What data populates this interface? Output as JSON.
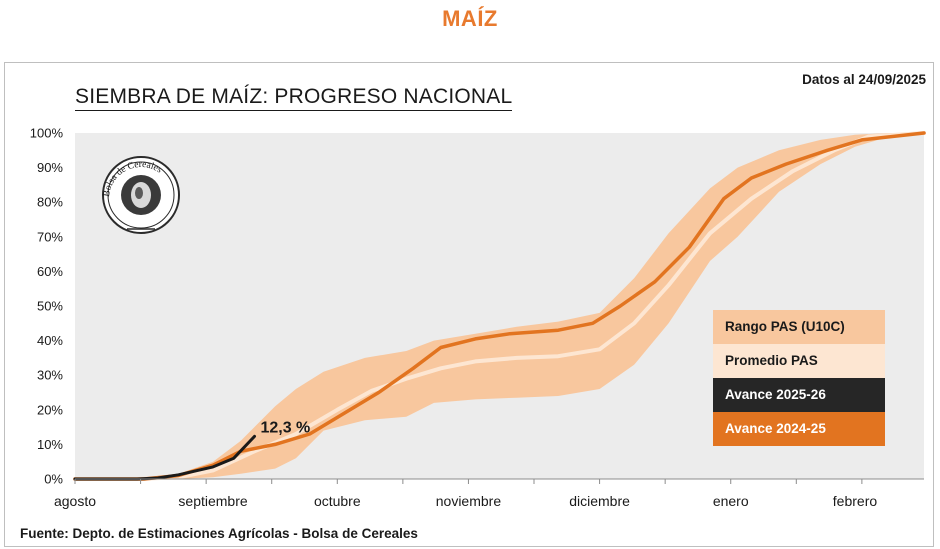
{
  "page_title": "MAÍZ",
  "date_note": "Datos al 24/09/2025",
  "source": "Fuente: Depto. de Estimaciones Agrícolas - Bolsa de Cereales",
  "logo_text": "Bolsa de Cereales",
  "colors": {
    "range": "#f8c79e",
    "average": "#fde6d2",
    "current": "#1a1a1a",
    "previous": "#e27420",
    "plot_bg": "#ececec",
    "title_accent": "#e87a2e"
  },
  "chart_data": {
    "type": "line",
    "title": "SIEMBRA DE MAÍZ: PROGRESO NACIONAL",
    "xlabel": "",
    "ylabel": "",
    "ylim": [
      0,
      100
    ],
    "xlim": [
      0,
      12.3
    ],
    "x_unit": "months since August 1",
    "x_ticks": [
      {
        "label": "agosto",
        "x": 0
      },
      {
        "label": "septiembre",
        "x": 2.0
      },
      {
        "label": "octubre",
        "x": 3.8
      },
      {
        "label": "noviembre",
        "x": 5.7
      },
      {
        "label": "diciembre",
        "x": 7.6
      },
      {
        "label": "enero",
        "x": 9.5
      },
      {
        "label": "febrero",
        "x": 11.3
      }
    ],
    "y_ticks": [
      0,
      10,
      20,
      30,
      40,
      50,
      60,
      70,
      80,
      90,
      100
    ],
    "y_tick_labels": [
      "0%",
      "10%",
      "20%",
      "30%",
      "40%",
      "50%",
      "60%",
      "70%",
      "80%",
      "90%",
      "100%"
    ],
    "annotation": {
      "text": "12,3 %",
      "x": 2.6,
      "y": 12.3
    },
    "series": [
      {
        "name": "Rango PAS (U10C)",
        "kind": "band",
        "x": [
          0,
          0.9,
          1.2,
          1.5,
          2.0,
          2.4,
          2.9,
          3.2,
          3.6,
          4.2,
          4.8,
          5.2,
          5.8,
          6.4,
          7.0,
          7.6,
          8.1,
          8.6,
          9.2,
          9.6,
          10.2,
          10.8,
          11.3,
          11.8,
          12.3
        ],
        "lower": [
          0,
          0,
          0,
          0,
          0.5,
          1.5,
          3,
          6,
          14,
          17,
          18,
          22,
          23,
          23.5,
          24,
          26,
          33,
          45,
          63,
          70,
          83,
          91,
          96,
          99,
          100
        ],
        "upper": [
          0,
          0,
          0.3,
          1.5,
          5,
          11,
          21,
          26,
          31,
          35,
          37,
          40,
          42,
          44,
          45.5,
          48,
          58,
          71,
          84,
          90,
          95,
          98,
          99.5,
          100,
          100
        ]
      },
      {
        "name": "Promedio PAS",
        "kind": "line",
        "x": [
          0,
          0.9,
          1.5,
          2.0,
          2.6,
          3.2,
          3.8,
          4.3,
          4.8,
          5.3,
          5.8,
          6.4,
          7.0,
          7.6,
          8.1,
          8.6,
          9.2,
          9.8,
          10.4,
          11.0,
          11.5,
          12.3
        ],
        "values": [
          0,
          0,
          0.5,
          2.5,
          8,
          13,
          20,
          25.5,
          29,
          32,
          34,
          35,
          35.5,
          37.5,
          45,
          56,
          71,
          81,
          89,
          95,
          99,
          100
        ]
      },
      {
        "name": "Avance 2024-25",
        "kind": "line",
        "x": [
          0,
          1.0,
          1.5,
          2.0,
          2.4,
          2.9,
          3.4,
          3.9,
          4.4,
          4.9,
          5.3,
          5.8,
          6.3,
          7.0,
          7.5,
          7.9,
          8.4,
          8.9,
          9.4,
          9.8,
          10.3,
          10.9,
          11.4,
          12.3
        ],
        "values": [
          0,
          0,
          1,
          4,
          8,
          10,
          13,
          19,
          25,
          32,
          38,
          40.5,
          42,
          43,
          45,
          50,
          57,
          67,
          81,
          87,
          91,
          95,
          98,
          100
        ]
      },
      {
        "name": "Avance 2025-26",
        "kind": "line",
        "x": [
          0,
          0.9,
          1.2,
          1.5,
          2.0,
          2.3,
          2.6
        ],
        "values": [
          0,
          0,
          0.3,
          1.2,
          3.5,
          6,
          12.3
        ]
      }
    ],
    "legend": [
      {
        "label": "Rango PAS (U10C)"
      },
      {
        "label": "Promedio PAS"
      },
      {
        "label": "Avance 2025-26"
      },
      {
        "label": "Avance 2024-25"
      }
    ],
    "legend_position": "right",
    "grid": false
  }
}
